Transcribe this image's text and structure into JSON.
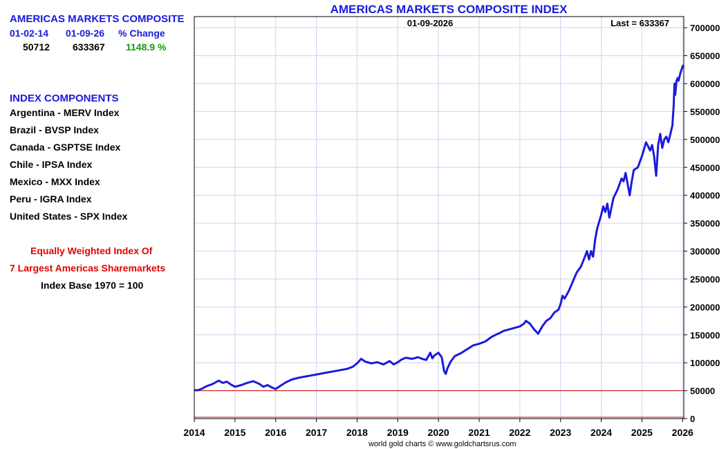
{
  "summary": {
    "heading": "AMERICAS MARKETS COMPOSITE",
    "start_date": "01-02-14",
    "end_date": "01-09-26",
    "change_label": "% Change",
    "start_value": "50712",
    "end_value": "633367",
    "change_value": "1148.9 %"
  },
  "components": {
    "heading": "INDEX COMPONENTS",
    "items": [
      "Argentina - MERV Index",
      "Brazil - BVSP Index",
      "Canada - GSPTSE Index",
      "Chile - IPSA Index",
      "Mexico - MXX Index",
      "Peru - IGRA Index",
      "United States - SPX Index"
    ]
  },
  "notes": {
    "line1": "Equally Weighted Index Of",
    "line2": "7 Largest Americas Sharemarkets",
    "line3": "Index Base 1970 = 100"
  },
  "credit": "world gold charts © www.goldchartsrus.com",
  "colors": {
    "series": "#1a1adc",
    "reference_line": "#cc0000",
    "grid": "#d0d0ee",
    "title": "#1a1adc"
  },
  "chart_data": {
    "type": "line",
    "title": "AMERICAS MARKETS COMPOSITE INDEX",
    "date_label": "01-09-2026",
    "last_label": "Last = 633367",
    "xlim": [
      2014.0,
      2026.03
    ],
    "ylim": [
      0,
      720000
    ],
    "x_ticks": [
      "2014",
      "2015",
      "2016",
      "2017",
      "2018",
      "2019",
      "2020",
      "2021",
      "2022",
      "2023",
      "2024",
      "2025",
      "2026"
    ],
    "y_ticks": [
      "0",
      "50000",
      "100000",
      "150000",
      "200000",
      "250000",
      "300000",
      "350000",
      "400000",
      "450000",
      "500000",
      "550000",
      "600000",
      "650000",
      "700000"
    ],
    "y_axis_side": "right",
    "grid": true,
    "reference_lines": [
      50000,
      0
    ],
    "series": [
      {
        "x": [
          2014.0,
          2014.1,
          2014.2,
          2014.3,
          2014.45,
          2014.6,
          2014.7,
          2014.8,
          2014.9,
          2015.0,
          2015.15,
          2015.3,
          2015.45,
          2015.6,
          2015.7,
          2015.8,
          2015.9,
          2016.0,
          2016.1,
          2016.25,
          2016.4,
          2016.55,
          2016.7,
          2016.85,
          2017.0,
          2017.15,
          2017.3,
          2017.45,
          2017.6,
          2017.75,
          2017.9,
          2018.0,
          2018.05,
          2018.1,
          2018.2,
          2018.35,
          2018.5,
          2018.65,
          2018.8,
          2018.9,
          2019.0,
          2019.1,
          2019.2,
          2019.35,
          2019.5,
          2019.6,
          2019.7,
          2019.8,
          2019.85,
          2019.9,
          2020.0,
          2020.08,
          2020.14,
          2020.18,
          2020.22,
          2020.3,
          2020.4,
          2020.55,
          2020.7,
          2020.85,
          2021.0,
          2021.15,
          2021.3,
          2021.4,
          2021.5,
          2021.6,
          2021.75,
          2021.9,
          2022.0,
          2022.1,
          2022.15,
          2022.25,
          2022.35,
          2022.45,
          2022.55,
          2022.65,
          2022.75,
          2022.85,
          2022.95,
          2023.0,
          2023.05,
          2023.1,
          2023.2,
          2023.3,
          2023.4,
          2023.5,
          2023.6,
          2023.65,
          2023.7,
          2023.75,
          2023.8,
          2023.85,
          2023.9,
          2024.0,
          2024.05,
          2024.1,
          2024.15,
          2024.2,
          2024.3,
          2024.4,
          2024.5,
          2024.55,
          2024.6,
          2024.65,
          2024.7,
          2024.75,
          2024.8,
          2024.9,
          2024.95,
          2025.0,
          2025.05,
          2025.1,
          2025.15,
          2025.2,
          2025.25,
          2025.3,
          2025.35,
          2025.4,
          2025.45,
          2025.5,
          2025.55,
          2025.6,
          2025.65,
          2025.7,
          2025.75,
          2025.78,
          2025.8,
          2025.82,
          2025.85,
          2025.88,
          2025.9,
          2025.95,
          2026.0,
          2026.02
        ],
        "y": [
          50712,
          51000,
          54000,
          58000,
          62000,
          68000,
          64000,
          66000,
          61000,
          57000,
          60000,
          64000,
          67000,
          62000,
          57000,
          60000,
          56000,
          53000,
          58000,
          65000,
          70000,
          73000,
          75000,
          77000,
          79000,
          81000,
          83000,
          85000,
          87000,
          89000,
          93000,
          99000,
          103000,
          107000,
          102000,
          99000,
          101000,
          97000,
          103000,
          97000,
          101000,
          106000,
          109000,
          107000,
          110000,
          107000,
          105000,
          118000,
          108000,
          113000,
          118000,
          110000,
          85000,
          80000,
          90000,
          102000,
          112000,
          117000,
          124000,
          131000,
          134000,
          138000,
          146000,
          150000,
          153000,
          157000,
          160000,
          163000,
          165000,
          170000,
          175000,
          170000,
          160000,
          152000,
          165000,
          175000,
          180000,
          190000,
          195000,
          205000,
          220000,
          215000,
          228000,
          245000,
          262000,
          272000,
          290000,
          300000,
          285000,
          300000,
          290000,
          320000,
          340000,
          365000,
          380000,
          370000,
          385000,
          360000,
          395000,
          410000,
          430000,
          425000,
          440000,
          420000,
          400000,
          425000,
          445000,
          450000,
          460000,
          470000,
          482000,
          495000,
          488000,
          480000,
          490000,
          470000,
          435000,
          490000,
          510000,
          485000,
          500000,
          505000,
          495000,
          510000,
          525000,
          560000,
          600000,
          580000,
          605000,
          610000,
          605000,
          620000,
          630000,
          633367
        ],
        "color": "#1a1adc"
      }
    ]
  }
}
